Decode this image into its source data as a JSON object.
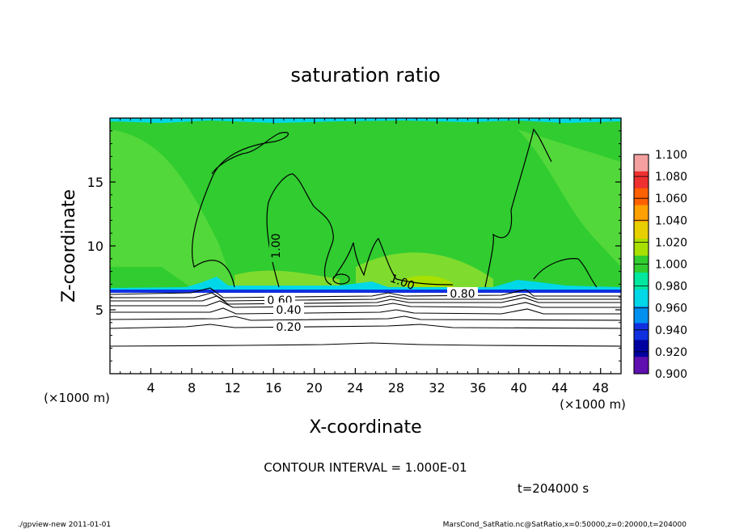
{
  "chart_data": {
    "type": "heatmap",
    "title": "saturation ratio",
    "xlabel": "X-coordinate",
    "ylabel": "Z-coordinate",
    "x_unit_left": "(×1000 m)",
    "x_unit_right": "(×1000 m)",
    "xlim": [
      0,
      50
    ],
    "ylim": [
      0,
      20
    ],
    "x_ticks": [
      4,
      8,
      12,
      16,
      20,
      24,
      28,
      32,
      36,
      40,
      44,
      48
    ],
    "y_ticks": [
      5,
      10,
      15
    ],
    "colorbar": {
      "ticks": [
        "1.100",
        "1.080",
        "1.060",
        "1.040",
        "1.020",
        "1.000",
        "0.980",
        "0.960",
        "0.940",
        "0.920",
        "0.900"
      ],
      "colors": [
        "#f4a0a0",
        "#ee3030",
        "#ff6000",
        "#ffa000",
        "#e8d000",
        "#a8e000",
        "#30cc30",
        "#00e8a0",
        "#00d8e8",
        "#0090f0",
        "#1030e0",
        "#0000a0",
        "#6010b0"
      ]
    },
    "field": {
      "upper_saturated_layer": {
        "z_min": 6.5,
        "z_max": 20,
        "value": 1.0
      },
      "lower_subsaturated_layer": {
        "z_min": 0,
        "z_max": 6.5,
        "value_range": [
          0.0,
          0.98
        ]
      }
    },
    "contour_labels": [
      "1.00",
      "0.60",
      "0.40",
      "0.20",
      "1.00",
      "0.80"
    ],
    "contour_interval_text": "CONTOUR INTERVAL = 1.000E-01",
    "time_text": "t=204000 s",
    "footer_left": "./gpview-new  2011-01-01",
    "footer_right": "MarsCond_SatRatio.nc@SatRatio,x=0:50000,z=0:20000,t=204000"
  }
}
